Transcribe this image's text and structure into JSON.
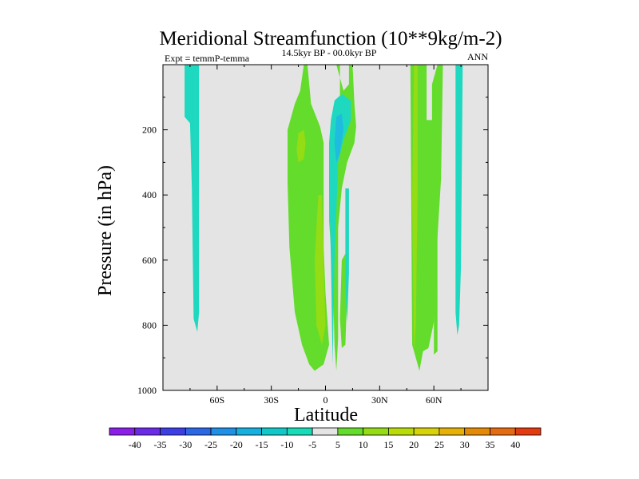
{
  "chart_data": {
    "type": "contour",
    "title": "Meridional Streamfunction (10**9kg/m-2)",
    "subtitle_left": "Expt = temmP-temma",
    "subtitle_center": "14.5kyr BP - 00.0kyr BP",
    "subtitle_right": "ANN",
    "xlabel": "Latitude",
    "ylabel": "Pressure (in hPa)",
    "xlim": [
      -90,
      90
    ],
    "ylim": [
      0,
      1000
    ],
    "y_inverted": true,
    "x_ticks": [
      {
        "value": -60,
        "label": "60S"
      },
      {
        "value": -30,
        "label": "30S"
      },
      {
        "value": 0,
        "label": "0"
      },
      {
        "value": 30,
        "label": "30N"
      },
      {
        "value": 60,
        "label": "60N"
      }
    ],
    "y_ticks": [
      {
        "value": 200,
        "label": "200"
      },
      {
        "value": 400,
        "label": "400"
      },
      {
        "value": 600,
        "label": "600"
      },
      {
        "value": 800,
        "label": "800"
      },
      {
        "value": 1000,
        "label": "1000"
      }
    ],
    "background_level": "-5 to 5",
    "regions": [
      {
        "name": "cell-70S",
        "level": -7.5,
        "polygon": [
          [
            -78,
            0
          ],
          [
            -70,
            0
          ],
          [
            -70,
            760
          ],
          [
            -71,
            820
          ],
          [
            -73,
            780
          ],
          [
            -74,
            380
          ],
          [
            -75,
            180
          ],
          [
            -78,
            160
          ]
        ]
      },
      {
        "name": "cell-tropics-south",
        "level": 7.5,
        "polygon": [
          [
            -12,
            0
          ],
          [
            -10,
            0
          ],
          [
            -8,
            120
          ],
          [
            -3,
            190
          ],
          [
            -1,
            240
          ],
          [
            -1,
            560
          ],
          [
            0,
            700
          ],
          [
            2,
            860
          ],
          [
            -1,
            920
          ],
          [
            -6,
            940
          ],
          [
            -9,
            920
          ],
          [
            -13,
            860
          ],
          [
            -17,
            760
          ],
          [
            -20,
            560
          ],
          [
            -21,
            360
          ],
          [
            -21,
            200
          ],
          [
            -17,
            120
          ],
          [
            -14,
            80
          ]
        ]
      },
      {
        "name": "cell-tropics-south-max",
        "level": 12.5,
        "polygon": [
          [
            -15,
            210
          ],
          [
            -12,
            200
          ],
          [
            -11,
            240
          ],
          [
            -12,
            290
          ],
          [
            -15,
            300
          ],
          [
            -16,
            260
          ]
        ]
      },
      {
        "name": "cell-tropics-south-lower",
        "level": 12.5,
        "polygon": [
          [
            -4,
            400
          ],
          [
            -2,
            400
          ],
          [
            -1,
            600
          ],
          [
            0,
            800
          ],
          [
            -2,
            860
          ],
          [
            -5,
            800
          ],
          [
            -6,
            600
          ]
        ]
      },
      {
        "name": "cell-tropics-north",
        "level": 7.5,
        "polygon": [
          [
            6,
            0
          ],
          [
            8,
            0
          ],
          [
            8,
            120
          ],
          [
            5,
            180
          ],
          [
            2,
            260
          ],
          [
            2,
            480
          ],
          [
            4,
            640
          ],
          [
            5,
            860
          ],
          [
            6,
            940
          ],
          [
            7,
            840
          ],
          [
            7,
            500
          ],
          [
            9,
            380
          ],
          [
            12,
            300
          ],
          [
            16,
            240
          ],
          [
            17,
            190
          ],
          [
            16,
            120
          ],
          [
            15,
            0
          ],
          [
            13,
            0
          ],
          [
            13,
            60
          ],
          [
            10,
            80
          ]
        ]
      },
      {
        "name": "cell-tropics-north-lower",
        "level": 7.5,
        "polygon": [
          [
            9,
            600
          ],
          [
            11,
            580
          ],
          [
            12,
            700
          ],
          [
            11,
            860
          ],
          [
            9,
            870
          ],
          [
            8,
            780
          ]
        ]
      },
      {
        "name": "cell-equator-north",
        "level": -7.5,
        "polygon": [
          [
            5,
            110
          ],
          [
            9,
            90
          ],
          [
            14,
            110
          ],
          [
            14,
            170
          ],
          [
            10,
            230
          ],
          [
            7,
            300
          ],
          [
            5,
            600
          ],
          [
            4,
            920
          ],
          [
            3,
            600
          ],
          [
            2,
            360
          ],
          [
            2,
            240
          ],
          [
            3,
            170
          ]
        ]
      },
      {
        "name": "cell-equator-north-min",
        "level": -12.5,
        "polygon": [
          [
            6,
            160
          ],
          [
            9,
            150
          ],
          [
            10,
            200
          ],
          [
            8,
            270
          ],
          [
            6,
            300
          ],
          [
            5,
            240
          ]
        ]
      },
      {
        "name": "cell-20N",
        "level": -7.5,
        "polygon": [
          [
            11,
            380
          ],
          [
            13,
            380
          ],
          [
            13,
            640
          ],
          [
            12,
            790
          ],
          [
            11,
            680
          ]
        ]
      },
      {
        "name": "cell-40N",
        "level": 7.5,
        "polygon": [
          [
            47,
            0
          ],
          [
            56,
            0
          ],
          [
            56,
            170
          ],
          [
            59,
            170
          ],
          [
            59,
            60
          ],
          [
            62,
            0
          ],
          [
            65,
            0
          ],
          [
            64,
            350
          ],
          [
            61,
            620
          ],
          [
            60,
            790
          ],
          [
            57,
            870
          ],
          [
            54,
            880
          ],
          [
            52,
            940
          ],
          [
            50,
            900
          ],
          [
            48,
            860
          ]
        ]
      },
      {
        "name": "cell-40N-max",
        "level": 12.5,
        "polygon": [
          [
            49,
            0
          ],
          [
            51,
            0
          ],
          [
            51,
            400
          ],
          [
            50,
            800
          ],
          [
            49,
            880
          ],
          [
            48,
            420
          ]
        ]
      },
      {
        "name": "cell-60N",
        "level": 7.5,
        "polygon": [
          [
            61,
            500
          ],
          [
            62,
            520
          ],
          [
            62,
            880
          ],
          [
            60,
            890
          ],
          [
            60,
            700
          ]
        ]
      },
      {
        "name": "cell-70N",
        "level": -7.5,
        "polygon": [
          [
            72,
            0
          ],
          [
            76,
            0
          ],
          [
            75,
            620
          ],
          [
            74,
            800
          ],
          [
            73,
            830
          ],
          [
            72,
            760
          ],
          [
            72,
            320
          ]
        ]
      }
    ],
    "colorbar": {
      "labels": [
        "-40",
        "-35",
        "-30",
        "-25",
        "-20",
        "-15",
        "-10",
        "-5",
        "5",
        "10",
        "15",
        "20",
        "25",
        "30",
        "35",
        "40"
      ],
      "colors": [
        "#8a20e8",
        "#6a2ae8",
        "#3d3ee6",
        "#2c67e6",
        "#1e90e6",
        "#16b0e0",
        "#10c8c8",
        "#18dcb8",
        "#e4e4e4",
        "#64dc2c",
        "#94dc14",
        "#b8dc08",
        "#d8d208",
        "#e6b006",
        "#e68a06",
        "#e66a10",
        "#e43a10"
      ]
    },
    "colors": {
      "background": "#e4e4e4",
      "levels": {
        "-12.5": "#1ebcde",
        "-7.5": "#1ed8c0",
        "7.5": "#64dc2c",
        "12.5": "#94dc14"
      }
    }
  }
}
